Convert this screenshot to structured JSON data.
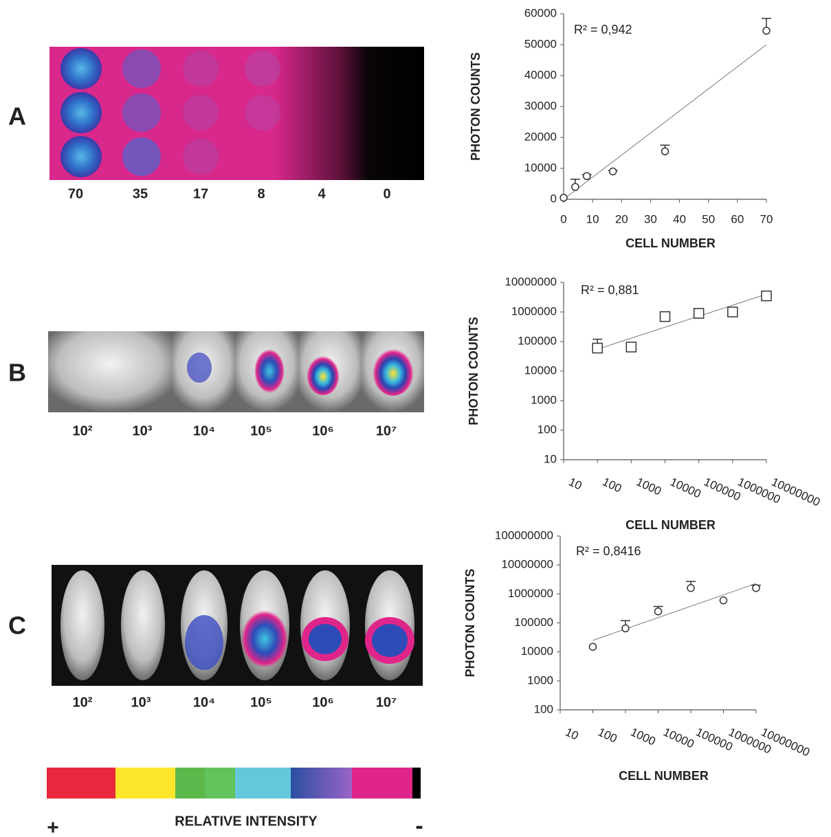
{
  "panels": [
    {
      "label": "A",
      "image_labels": [
        "70",
        "35",
        "17",
        "8",
        "4",
        "0"
      ]
    },
    {
      "label": "B",
      "image_labels": [
        "10²",
        "10³",
        "10⁴",
        "10⁵",
        "10⁶",
        "10⁷"
      ]
    },
    {
      "label": "C",
      "image_labels": [
        "10²",
        "10³",
        "10⁴",
        "10⁵",
        "10⁶",
        "10⁷"
      ]
    }
  ],
  "color_bar": {
    "plus": "+",
    "title": "RELATIVE INTENSITY",
    "minus": "-"
  },
  "chart_data": [
    {
      "type": "scatter",
      "annotation": "R² = 0,942",
      "xlabel": "CELL NUMBER",
      "ylabel": "PHOTON COUNTS",
      "marker": "circle",
      "color": "#333333",
      "x": [
        0,
        4,
        8,
        17,
        35,
        70
      ],
      "values": [
        500,
        4000,
        7500,
        9000,
        15500,
        54500
      ],
      "errors": [
        null,
        2500,
        500,
        300,
        2000,
        4000
      ],
      "trendline": {
        "x": [
          0,
          70
        ],
        "values": [
          0,
          50000
        ]
      },
      "xlim": [
        0,
        70
      ],
      "ylim": [
        0,
        60000
      ],
      "xticks": [
        0,
        10,
        20,
        30,
        40,
        50,
        60,
        70
      ],
      "yticks": [
        0,
        10000,
        20000,
        30000,
        40000,
        50000,
        60000
      ]
    },
    {
      "type": "scatter",
      "annotation": "R² = 0,881",
      "xlabel": "CELL NUMBER",
      "ylabel": "PHOTON COUNTS",
      "marker": "square",
      "color": "#333333",
      "log_x": true,
      "log_y": true,
      "x": [
        100,
        1000,
        10000,
        100000,
        1000000,
        10000000
      ],
      "values": [
        60000,
        65000,
        700000,
        900000,
        1000000,
        3500000
      ],
      "errors": [
        60000,
        null,
        null,
        400000,
        200000,
        600000
      ],
      "trendline": {
        "x": [
          100,
          10000000
        ],
        "values": [
          55000,
          4000000
        ]
      },
      "xlim": [
        10,
        10000000
      ],
      "ylim": [
        10,
        10000000
      ],
      "xticks": [
        10,
        100,
        1000,
        10000,
        100000,
        1000000,
        10000000
      ],
      "yticks": [
        10,
        100,
        1000,
        10000,
        100000,
        1000000,
        10000000
      ]
    },
    {
      "type": "scatter",
      "annotation": "R² = 0,8416",
      "xlabel": "CELL NUMBER",
      "ylabel": "PHOTON COUNTS",
      "marker": "circle",
      "color": "#333333",
      "log_x": true,
      "log_y": true,
      "x": [
        100,
        1000,
        10000,
        100000,
        1000000,
        10000000
      ],
      "values": [
        15000,
        65000,
        250000,
        1600000,
        600000,
        1600000
      ],
      "errors": [
        null,
        55000,
        120000,
        1100000,
        null,
        400000
      ],
      "trendline": {
        "x": [
          100,
          10000000
        ],
        "values": [
          25000,
          2300000
        ]
      },
      "xlim": [
        10,
        10000000
      ],
      "ylim": [
        100,
        100000000
      ],
      "xticks": [
        10,
        100,
        1000,
        10000,
        100000,
        1000000,
        10000000
      ],
      "yticks": [
        100,
        1000,
        10000,
        100000,
        1000000,
        10000000,
        100000000
      ]
    }
  ]
}
